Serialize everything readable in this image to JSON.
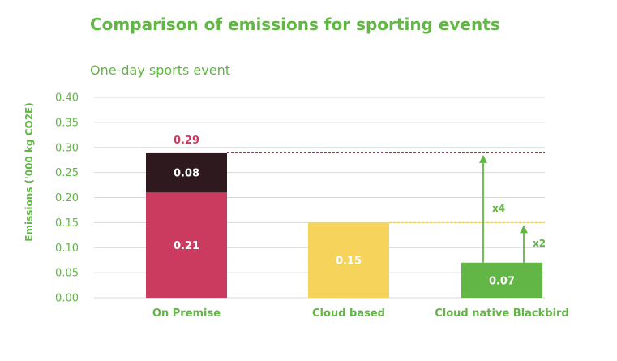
{
  "chart_data": {
    "type": "bar",
    "stacked": true,
    "title": "Comparison of emissions for sporting events",
    "subtitle": "One-day sports event",
    "xlabel": "",
    "ylabel": "Emissions ('000 kg CO2E)",
    "ylim": [
      0,
      0.4
    ],
    "yticks": [
      "0.00",
      "0.05",
      "0.10",
      "0.15",
      "0.20",
      "0.25",
      "0.30",
      "0.35",
      "0.40"
    ],
    "grid": true,
    "categories": [
      "On Premise",
      "Cloud based",
      "Cloud native Blackbird"
    ],
    "bars": [
      {
        "category": "On Premise",
        "total": "0.29",
        "total_value": 0.29,
        "total_color": "#cb3a5f",
        "segments": [
          {
            "value": 0.21,
            "label": "0.21",
            "color": "#cb3a5f"
          },
          {
            "value": 0.08,
            "label": "0.08",
            "color": "#2e1a1e"
          }
        ]
      },
      {
        "category": "Cloud based",
        "segments": [
          {
            "value": 0.15,
            "label": "0.15",
            "color": "#f6d35b"
          }
        ]
      },
      {
        "category": "Cloud native Blackbird",
        "segments": [
          {
            "value": 0.07,
            "label": "0.07",
            "color": "#62b645"
          }
        ]
      }
    ],
    "reference_lines": [
      {
        "value": 0.29,
        "color": "#8a1e2e",
        "style": "dashed",
        "from_category": 0
      },
      {
        "value": 0.15,
        "color": "#f6d35b",
        "style": "dashed",
        "from_category": 1
      }
    ],
    "annotations": [
      {
        "label": "x4",
        "from": 0.07,
        "to": 0.29,
        "at_category": 2,
        "offset": "left"
      },
      {
        "label": "x2",
        "from": 0.07,
        "to": 0.15,
        "at_category": 2,
        "offset": "right"
      }
    ],
    "colors": {
      "text": "#62b645",
      "grid": "#d9d9d9",
      "annotation": "#62b645"
    }
  }
}
